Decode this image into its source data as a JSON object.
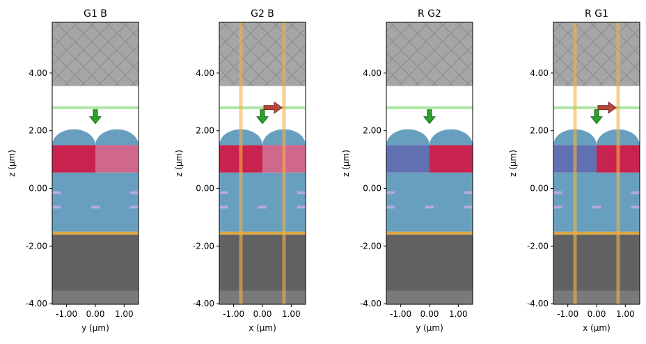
{
  "chart_data": [
    {
      "type": "structure",
      "title": "G1   B",
      "xlabel": "y (µm)",
      "ylabel": "z (µm)",
      "xlim": [
        -1.5,
        1.5
      ],
      "ylim": [
        -4.02,
        5.76
      ],
      "xticks": [
        {
          "value": -1,
          "label": "-1.00"
        },
        {
          "value": 0,
          "label": "0.00"
        },
        {
          "value": 1,
          "label": "1.00"
        }
      ],
      "yticks": [
        {
          "value": -4,
          "label": "-4.00"
        },
        {
          "value": -2,
          "label": "-2.00"
        },
        {
          "value": 0,
          "label": "0.00"
        },
        {
          "value": 2,
          "label": "2.00"
        },
        {
          "value": 4,
          "label": "4.00"
        }
      ]
    },
    {
      "type": "structure",
      "title": "G2   B",
      "xlabel": "x (µm)",
      "ylabel": "z (µm)",
      "xlim": [
        -1.5,
        1.5
      ],
      "ylim": [
        -4.02,
        5.76
      ],
      "xticks": [
        {
          "value": -1,
          "label": "-1.00"
        },
        {
          "value": 0,
          "label": "0.00"
        },
        {
          "value": 1,
          "label": "1.00"
        }
      ],
      "yticks": [
        {
          "value": -4,
          "label": "-4.00"
        },
        {
          "value": -2,
          "label": "-2.00"
        },
        {
          "value": 0,
          "label": "0.00"
        },
        {
          "value": 2,
          "label": "2.00"
        },
        {
          "value": 4,
          "label": "4.00"
        }
      ]
    },
    {
      "type": "structure",
      "title": "R   G2",
      "xlabel": "y (µm)",
      "ylabel": "z (µm)",
      "xlim": [
        -1.5,
        1.5
      ],
      "ylim": [
        -4.02,
        5.76
      ],
      "xticks": [
        {
          "value": -1,
          "label": "-1.00"
        },
        {
          "value": 0,
          "label": "0.00"
        },
        {
          "value": 1,
          "label": "1.00"
        }
      ],
      "yticks": [
        {
          "value": -4,
          "label": "-4.00"
        },
        {
          "value": -2,
          "label": "-2.00"
        },
        {
          "value": 0,
          "label": "0.00"
        },
        {
          "value": 2,
          "label": "2.00"
        },
        {
          "value": 4,
          "label": "4.00"
        }
      ]
    },
    {
      "type": "structure",
      "title": "R   G1",
      "xlabel": "x (µm)",
      "ylabel": "z (µm)",
      "xlim": [
        -1.5,
        1.5
      ],
      "ylim": [
        -4.02,
        5.76
      ],
      "xticks": [
        {
          "value": -1,
          "label": "-1.00"
        },
        {
          "value": 0,
          "label": "0.00"
        },
        {
          "value": 1,
          "label": "1.00"
        }
      ],
      "yticks": [
        {
          "value": -4,
          "label": "-4.00"
        },
        {
          "value": -2,
          "label": "-2.00"
        },
        {
          "value": 0,
          "label": "0.00"
        },
        {
          "value": 2,
          "label": "2.00"
        },
        {
          "value": 4,
          "label": "4.00"
        }
      ]
    }
  ]
}
